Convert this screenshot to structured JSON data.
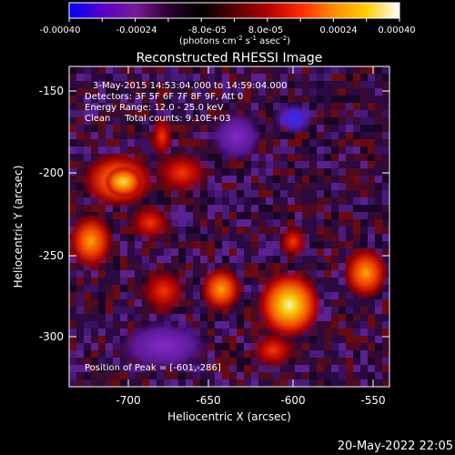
{
  "colorbar": {
    "tick_labels": [
      "-0.00040",
      "-0.00024",
      "-8.0e-05",
      "8.0e-05",
      "0.00024",
      "0.00040"
    ],
    "unit_main": "(photons cm",
    "unit_exp1": "-2",
    "unit_mid": " s",
    "unit_exp2": "-1",
    "unit_tail": " asec",
    "unit_exp3": "-2",
    "unit_close": ")",
    "colors": [
      "#0000ff",
      "#5a00c8",
      "#7a1a9a",
      "#2a0030",
      "#000000",
      "#5a0000",
      "#b00000",
      "#ff2a00",
      "#ff8a00",
      "#ffd000",
      "#ffffff"
    ]
  },
  "image": {
    "title": "Reconstructed RHESSI Image",
    "info_lines": [
      "3-May-2015 14:53:04.000 to 14:59:04.000",
      "Detectors: 3F 5F 6F 7F 8F 9F, Att 0",
      "Energy Range: 12.0 - 25.0 keV",
      "Clean     Total counts: 9.10E+03"
    ],
    "peak_label": "Position of Peak = ",
    "peak_value": "[-601,-286]",
    "xlabel": "Heliocentric X (arcsec)",
    "ylabel": "Heliocentric Y (arcsec)",
    "xticks": [
      "-700",
      "-650",
      "-600",
      "-550"
    ],
    "yticks": [
      "-150",
      "-200",
      "-250",
      "-300"
    ],
    "timestamp": "20-May-2022 22:05"
  }
}
